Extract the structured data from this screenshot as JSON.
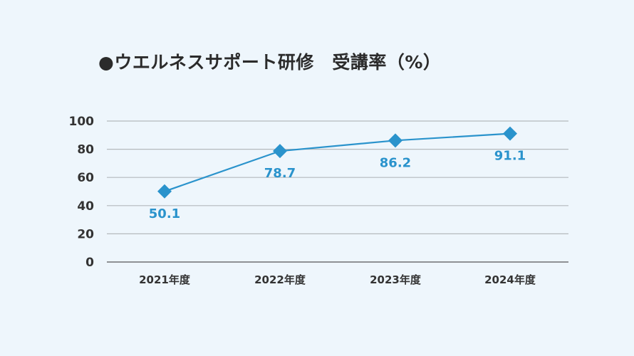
{
  "chart_data": {
    "type": "line",
    "title": "●ウエルネスサポート研修　受講率（%）",
    "categories": [
      "2021年度",
      "2022年度",
      "2023年度",
      "2024年度"
    ],
    "series": [
      {
        "values": [
          50.1,
          78.7,
          86.2,
          91.1
        ]
      }
    ],
    "data_labels": [
      "50.1",
      "78.7",
      "86.2",
      "91.1"
    ],
    "ylim": [
      0,
      100
    ],
    "yticks": [
      "0",
      "20",
      "40",
      "60",
      "80",
      "100"
    ],
    "grid": true,
    "marker": "diamond",
    "colors": {
      "line": "#2a93cc",
      "label": "#2a93cc",
      "grid": "#b4b9bd",
      "axis": "#555555",
      "background": "#eef6fc"
    }
  }
}
